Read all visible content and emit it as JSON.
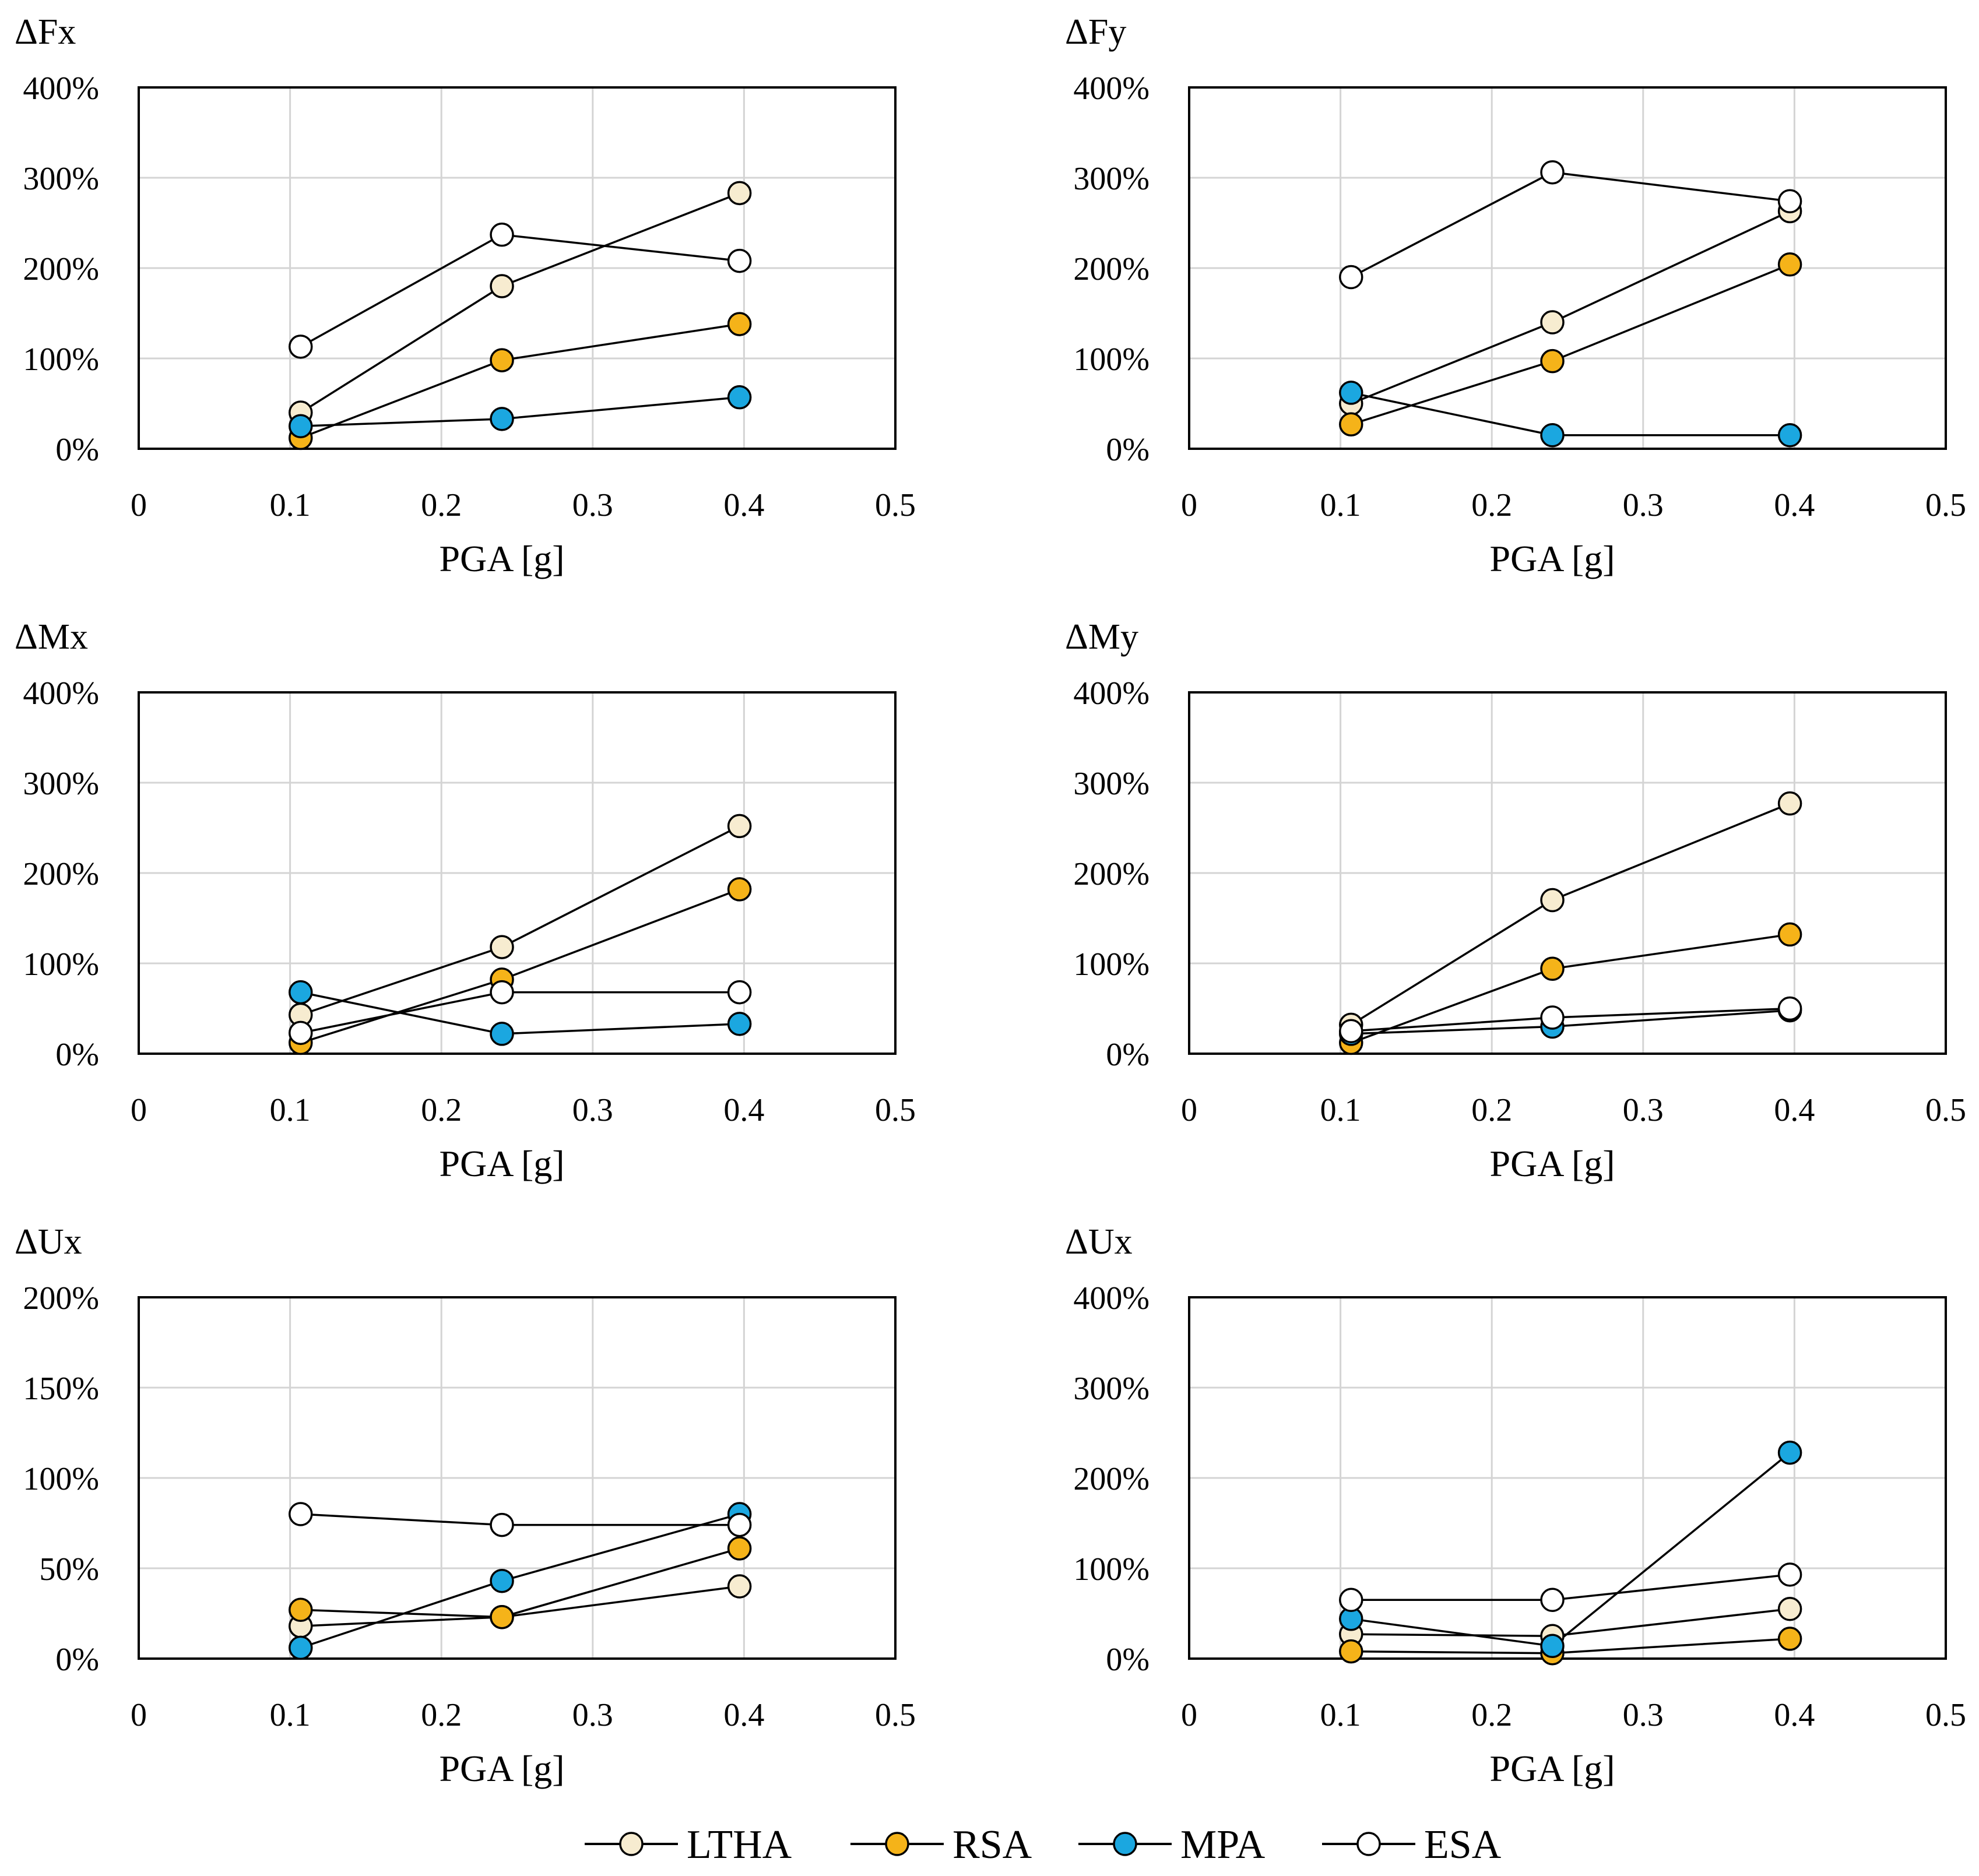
{
  "legend": {
    "series": [
      {
        "name": "LTHA",
        "fill": "#f7ecd0"
      },
      {
        "name": "RSA",
        "fill": "#f5b319"
      },
      {
        "name": "MPA",
        "fill": "#1ba7e0"
      },
      {
        "name": "ESA",
        "fill": "#ffffff"
      }
    ]
  },
  "chart_data": [
    {
      "type": "line",
      "title": "ΔFx",
      "xlabel": "PGA [g]",
      "ylabel": "",
      "xlim": [
        0,
        0.5
      ],
      "ylim": [
        0,
        400
      ],
      "xticks": [
        "0",
        "0.1",
        "0.2",
        "0.3",
        "0.4",
        "0.5"
      ],
      "yticks": [
        "0%",
        "100%",
        "200%",
        "300%",
        "400%"
      ],
      "x": [
        0.107,
        0.24,
        0.397
      ],
      "grid": true,
      "series": [
        {
          "name": "LTHA",
          "values": [
            40,
            180,
            283
          ]
        },
        {
          "name": "RSA",
          "values": [
            12,
            98,
            138
          ]
        },
        {
          "name": "MPA",
          "values": [
            25,
            33,
            57
          ]
        },
        {
          "name": "ESA",
          "values": [
            113,
            237,
            208
          ]
        }
      ]
    },
    {
      "type": "line",
      "title": "ΔFy",
      "xlabel": "PGA [g]",
      "ylabel": "",
      "xlim": [
        0,
        0.5
      ],
      "ylim": [
        0,
        400
      ],
      "xticks": [
        "0",
        "0.1",
        "0.2",
        "0.3",
        "0.4",
        "0.5"
      ],
      "yticks": [
        "0%",
        "100%",
        "200%",
        "300%",
        "400%"
      ],
      "x": [
        0.107,
        0.24,
        0.397
      ],
      "grid": true,
      "series": [
        {
          "name": "LTHA",
          "values": [
            50,
            140,
            263
          ]
        },
        {
          "name": "RSA",
          "values": [
            27,
            97,
            204
          ]
        },
        {
          "name": "MPA",
          "values": [
            62,
            15,
            15
          ]
        },
        {
          "name": "ESA",
          "values": [
            190,
            306,
            274
          ]
        }
      ]
    },
    {
      "type": "line",
      "title": "ΔMx",
      "xlabel": "PGA [g]",
      "ylabel": "",
      "xlim": [
        0,
        0.5
      ],
      "ylim": [
        0,
        400
      ],
      "xticks": [
        "0",
        "0.1",
        "0.2",
        "0.3",
        "0.4",
        "0.5"
      ],
      "yticks": [
        "0%",
        "100%",
        "200%",
        "300%",
        "400%"
      ],
      "x": [
        0.107,
        0.24,
        0.397
      ],
      "grid": true,
      "series": [
        {
          "name": "LTHA",
          "values": [
            43,
            118,
            252
          ]
        },
        {
          "name": "RSA",
          "values": [
            12,
            82,
            182
          ]
        },
        {
          "name": "MPA",
          "values": [
            68,
            22,
            33
          ]
        },
        {
          "name": "ESA",
          "values": [
            23,
            68,
            68
          ]
        }
      ]
    },
    {
      "type": "line",
      "title": "ΔMy",
      "xlabel": "PGA [g]",
      "ylabel": "",
      "xlim": [
        0,
        0.5
      ],
      "ylim": [
        0,
        400
      ],
      "xticks": [
        "0",
        "0.1",
        "0.2",
        "0.3",
        "0.4",
        "0.5"
      ],
      "yticks": [
        "0%",
        "100%",
        "200%",
        "300%",
        "400%"
      ],
      "x": [
        0.107,
        0.24,
        0.397
      ],
      "grid": true,
      "series": [
        {
          "name": "LTHA",
          "values": [
            32,
            170,
            277
          ]
        },
        {
          "name": "RSA",
          "values": [
            12,
            94,
            132
          ]
        },
        {
          "name": "MPA",
          "values": [
            22,
            30,
            48
          ]
        },
        {
          "name": "ESA",
          "values": [
            25,
            40,
            50
          ]
        }
      ]
    },
    {
      "type": "line",
      "title": "ΔUx",
      "xlabel": "PGA [g]",
      "ylabel": "",
      "xlim": [
        0,
        0.5
      ],
      "ylim": [
        0,
        200
      ],
      "xticks": [
        "0",
        "0.1",
        "0.2",
        "0.3",
        "0.4",
        "0.5"
      ],
      "yticks": [
        "0%",
        "50%",
        "100%",
        "150%",
        "200%"
      ],
      "x": [
        0.107,
        0.24,
        0.397
      ],
      "grid": true,
      "series": [
        {
          "name": "LTHA",
          "values": [
            18,
            23,
            40
          ]
        },
        {
          "name": "RSA",
          "values": [
            27,
            23,
            61
          ]
        },
        {
          "name": "MPA",
          "values": [
            6,
            43,
            80
          ]
        },
        {
          "name": "ESA",
          "values": [
            80,
            74,
            74
          ]
        }
      ]
    },
    {
      "type": "line",
      "title": "ΔUx",
      "xlabel": "PGA [g]",
      "ylabel": "",
      "xlim": [
        0,
        0.5
      ],
      "ylim": [
        0,
        400
      ],
      "xticks": [
        "0",
        "0.1",
        "0.2",
        "0.3",
        "0.4",
        "0.5"
      ],
      "yticks": [
        "0%",
        "100%",
        "200%",
        "300%",
        "400%"
      ],
      "x": [
        0.107,
        0.24,
        0.397
      ],
      "grid": true,
      "series": [
        {
          "name": "LTHA",
          "values": [
            27,
            25,
            55
          ]
        },
        {
          "name": "RSA",
          "values": [
            8,
            6,
            22
          ]
        },
        {
          "name": "MPA",
          "values": [
            44,
            14,
            228
          ]
        },
        {
          "name": "ESA",
          "values": [
            65,
            65,
            93
          ]
        }
      ]
    }
  ]
}
